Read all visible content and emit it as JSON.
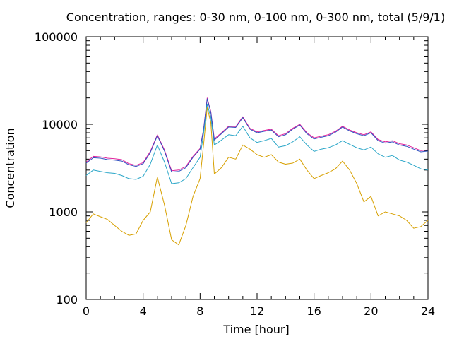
{
  "chart_data": {
    "type": "line",
    "title": "Concentration, ranges: 0-30 nm, 0-100 nm, 0-300 nm, total (5/9/1)",
    "xlabel": "Time [hour]",
    "ylabel": "Concentration",
    "xlim": [
      0,
      24
    ],
    "ylim": [
      100,
      100000
    ],
    "yscale": "log",
    "grid": false,
    "legend": "none",
    "xticks": [
      "0",
      "4",
      "8",
      "12",
      "16",
      "20",
      "24"
    ],
    "yticks": [
      "100",
      "1000",
      "10000",
      "100000"
    ],
    "x": [
      0,
      0.5,
      1,
      1.5,
      2,
      2.5,
      3,
      3.5,
      4,
      4.5,
      5,
      5.5,
      6,
      6.5,
      7,
      7.5,
      8,
      8.25,
      8.5,
      8.75,
      9,
      9.5,
      10,
      10.5,
      11,
      11.5,
      12,
      12.5,
      13,
      13.5,
      14,
      14.5,
      15,
      15.5,
      16,
      16.5,
      17,
      17.5,
      18,
      18.5,
      19,
      19.5,
      20,
      20.5,
      21,
      21.5,
      22,
      22.5,
      23,
      23.5,
      24
    ],
    "series": [
      {
        "color": "#e0209c",
        "values": [
          3700,
          4300,
          4250,
          4100,
          4050,
          3950,
          3550,
          3400,
          3650,
          4900,
          7600,
          5100,
          2950,
          3000,
          3300,
          4300,
          5300,
          9000,
          20000,
          14000,
          6800,
          8000,
          9500,
          9400,
          12200,
          9000,
          8200,
          8500,
          8800,
          7400,
          7800,
          9000,
          10000,
          8000,
          7000,
          7300,
          7600,
          8300,
          9500,
          8600,
          8000,
          7600,
          8200,
          6700,
          6300,
          6500,
          6000,
          5800,
          5400,
          5000,
          5100
        ]
      },
      {
        "color": "#3050c0",
        "values": [
          3600,
          4150,
          4100,
          3950,
          3900,
          3800,
          3450,
          3300,
          3550,
          4750,
          7400,
          4950,
          2850,
          2900,
          3200,
          4200,
          5200,
          8800,
          19500,
          13700,
          6600,
          7800,
          9300,
          9200,
          11900,
          8800,
          8000,
          8300,
          8600,
          7200,
          7600,
          8800,
          9800,
          7800,
          6800,
          7100,
          7400,
          8100,
          9300,
          8400,
          7800,
          7400,
          8000,
          6500,
          6100,
          6300,
          5800,
          5600,
          5200,
          4850,
          4950
        ]
      },
      {
        "color": "#2aa6c8",
        "values": [
          2600,
          3000,
          2900,
          2800,
          2750,
          2600,
          2400,
          2350,
          2550,
          3500,
          5800,
          3700,
          2100,
          2150,
          2400,
          3200,
          4200,
          8000,
          17000,
          12000,
          5800,
          6600,
          7600,
          7400,
          9500,
          7000,
          6200,
          6500,
          6900,
          5500,
          5700,
          6300,
          7200,
          5800,
          4900,
          5200,
          5400,
          5800,
          6500,
          5900,
          5400,
          5100,
          5500,
          4600,
          4200,
          4400,
          3900,
          3700,
          3400,
          3100,
          3000
        ]
      },
      {
        "color": "#d7a000",
        "values": [
          750,
          950,
          880,
          820,
          700,
          600,
          540,
          560,
          800,
          1000,
          2500,
          1200,
          480,
          420,
          700,
          1500,
          2400,
          6000,
          15500,
          10500,
          2700,
          3200,
          4200,
          4000,
          5800,
          5200,
          4500,
          4200,
          4500,
          3700,
          3500,
          3600,
          4000,
          3000,
          2400,
          2600,
          2800,
          3100,
          3800,
          3000,
          2100,
          1300,
          1500,
          900,
          1000,
          950,
          900,
          800,
          650,
          680,
          800
        ]
      }
    ]
  }
}
